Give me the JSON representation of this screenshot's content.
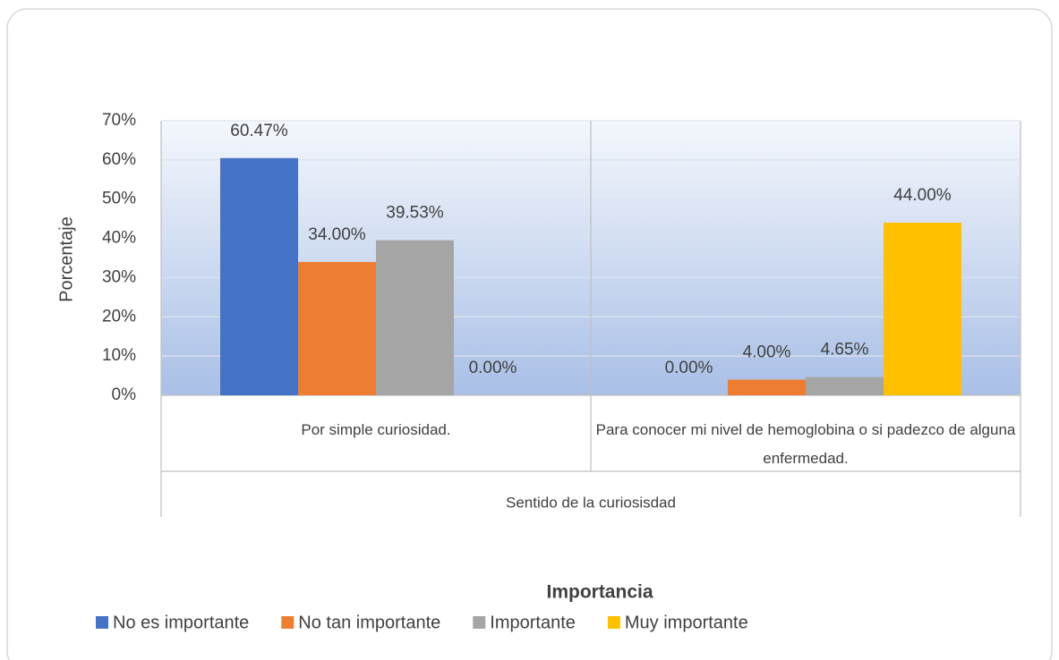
{
  "chart_data": {
    "type": "bar",
    "y_label": "Porcentaje",
    "x_group_label": "Sentido de la curiosisdad",
    "legend_title": "Importancia",
    "legend": "bottom",
    "grid": true,
    "categories": [
      "Por simple curiosidad.",
      "Para conocer mi nivel de hemoglobina o si padezco de alguna enfermedad."
    ],
    "series": [
      {
        "name": "No es importante",
        "color": "#4472c4",
        "values": [
          60.47,
          0
        ],
        "value_labels": [
          "60.47%",
          "0.00%"
        ]
      },
      {
        "name": "No tan importante",
        "color": "#ed7d31",
        "values": [
          34,
          4
        ],
        "value_labels": [
          "34.00%",
          "4.00%"
        ]
      },
      {
        "name": "Importante",
        "color": "#a5a5a5",
        "values": [
          39.53,
          4.65
        ],
        "value_labels": [
          "39.53%",
          "4.65%"
        ]
      },
      {
        "name": "Muy importante",
        "color": "#ffc000",
        "values": [
          0,
          44
        ],
        "value_labels": [
          "0.00%",
          "44.00%"
        ]
      }
    ],
    "ylim": [
      0,
      70
    ],
    "yticks": [
      {
        "value": 0,
        "label": "0%"
      },
      {
        "value": 10,
        "label": "10%"
      },
      {
        "value": 20,
        "label": "20%"
      },
      {
        "value": 30,
        "label": "30%"
      },
      {
        "value": 40,
        "label": "40%"
      },
      {
        "value": 50,
        "label": "50%"
      },
      {
        "value": 60,
        "label": "60%"
      },
      {
        "value": 70,
        "label": "70%"
      }
    ]
  }
}
